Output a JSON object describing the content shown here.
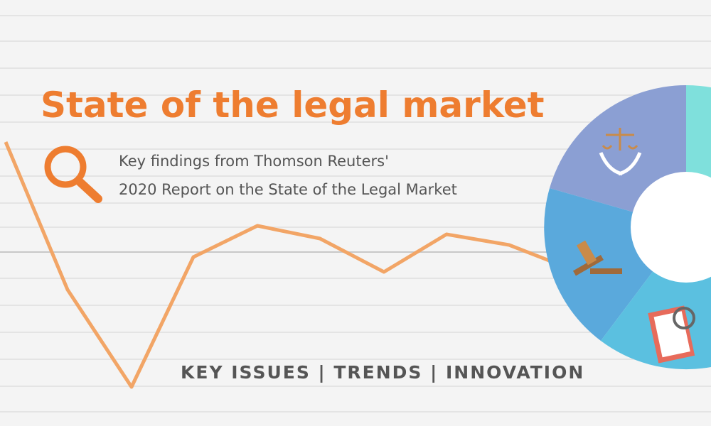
{
  "header": {
    "title": "State of the legal market",
    "subtitle_lines": [
      "Key findings from Thomson Reuters'",
      "2020 Report on the State of the Legal Market"
    ]
  },
  "footer": {
    "tagline": "KEY ISSUES | TRENDS | INNOVATION"
  }
}
